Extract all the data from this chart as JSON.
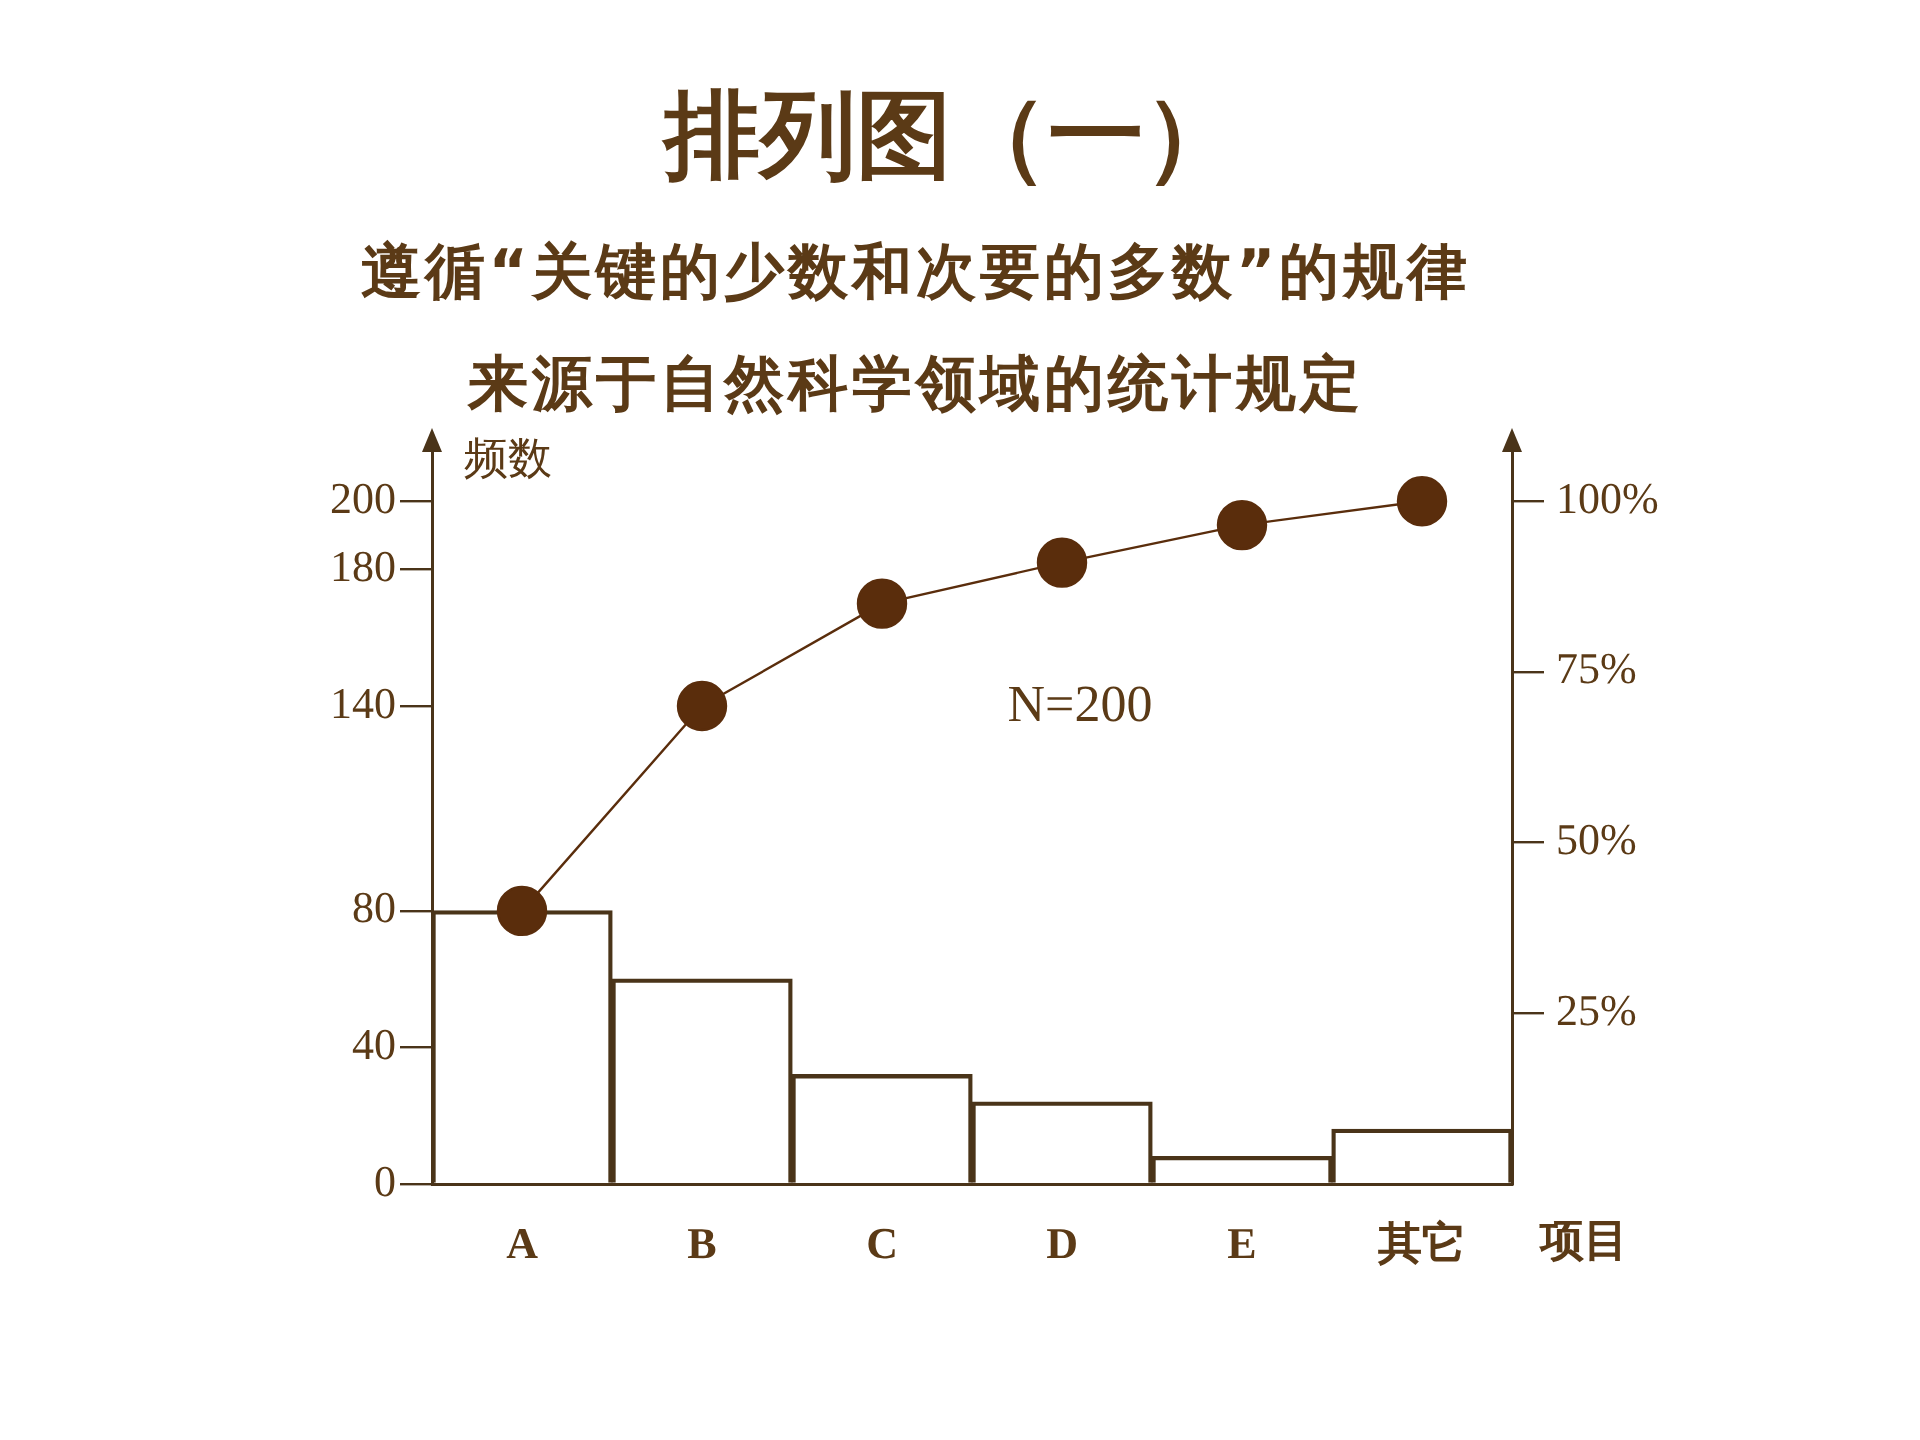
{
  "chart_data": {
    "type": "bar",
    "title": "排列图（一）",
    "subtitle": "遵循“关键的少数和次要的多数”的规律来源于自然科学领域的统计规定",
    "xlabel": "项目",
    "ylabel": "频数",
    "categories": [
      "A",
      "B",
      "C",
      "D",
      "E",
      "其它"
    ],
    "series": [
      {
        "color": "#4a3419",
        "values": [
          80,
          60,
          32,
          24,
          8,
          16
        ]
      },
      {
        "type": "line",
        "color": "#5a2d0c",
        "values": [
          80,
          140,
          170,
          182,
          193,
          200
        ]
      }
    ],
    "marker": "circle",
    "ylim": [
      0,
      215
    ],
    "yticks": [
      0,
      40,
      80,
      140,
      180,
      200
    ],
    "y2lim": [
      0,
      107.5
    ],
    "y2ticks": [
      {
        "value": 25,
        "label": "25%"
      },
      {
        "value": 50,
        "label": "50%"
      },
      {
        "value": 75,
        "label": "75%"
      },
      {
        "value": 100,
        "label": "100%"
      }
    ],
    "annotations": [
      "N=200"
    ]
  }
}
